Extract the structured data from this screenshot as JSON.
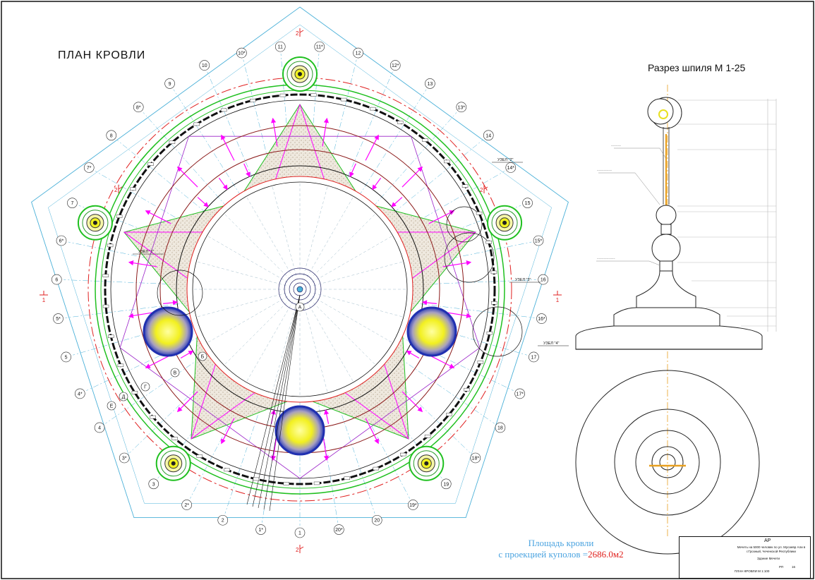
{
  "plan_title": "ПЛАН КРОВЛИ",
  "section_title": "Разрез шпиля М 1-25",
  "area_note": {
    "line1": "Площадь кровли",
    "line2_prefix": "с проекцией куполов =",
    "value": "2686.0м2"
  },
  "axes": {
    "numeric": [
      "1",
      "1*",
      "2",
      "2*",
      "3",
      "3*",
      "4",
      "4*",
      "5",
      "5*",
      "6",
      "6*",
      "7",
      "7*",
      "8",
      "8*",
      "9",
      "10",
      "10*",
      "11",
      "11*",
      "12",
      "12*",
      "13",
      "13*",
      "14",
      "14*",
      "15",
      "15*",
      "16",
      "16*",
      "17",
      "17*",
      "18",
      "18*",
      "19",
      "19*",
      "20",
      "20*"
    ],
    "letters": [
      "А",
      "Б",
      "В",
      "Г",
      "Д",
      "Е"
    ]
  },
  "section_marks": {
    "mark_1": "1",
    "mark_2": "2"
  },
  "node_labels": [
    "УЗЕЛ \"1\"",
    "УЗЕЛ \"2\"",
    "УЗЕЛ \"3\"",
    "УЗЕЛ \"4\""
  ],
  "title_block": {
    "code": "АР",
    "object": "Мечеть на 5000 человек по ул. Мусаевр Али в г.Грозный, Чеченской Республики",
    "building": "Здание Мечети",
    "stage": "РП",
    "sheet_no": "16",
    "sheet_name": "ПЛАН КРОВЛИ М 1:100"
  },
  "colors": {
    "axes_cyan": "#4ab0d8",
    "roof_green": "#20c020",
    "wall_black": "#111111",
    "dash_red": "#e02020",
    "slope_magenta": "#ff00ff",
    "beam_purple": "#9a20c8",
    "arc_brown": "#8b1a1a",
    "dome_yellow": "#f5f520",
    "dome_blue": "#2030b0",
    "hatch_beige": "#d8cfc0"
  },
  "icons": [
    "minaret-icon",
    "dome-icon",
    "spire-icon",
    "section-arrow-icon"
  ]
}
